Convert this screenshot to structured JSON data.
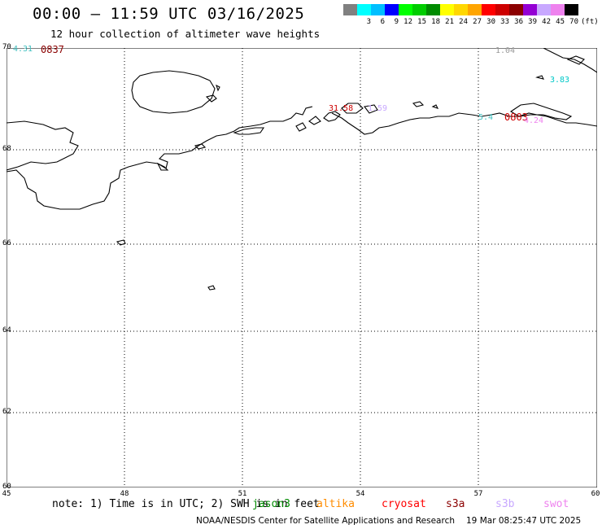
{
  "header": {
    "title": "00:00 — 11:59 UTC 03/16/2025",
    "subtitle": "12 hour collection of altimeter wave heights"
  },
  "legend": {
    "unit": "(ft)",
    "bins": [
      {
        "label": "",
        "color": "#808080"
      },
      {
        "label": "3",
        "color": "#00ffff"
      },
      {
        "label": "6",
        "color": "#00bfff"
      },
      {
        "label": "9",
        "color": "#0000ff"
      },
      {
        "label": "12",
        "color": "#00ff00"
      },
      {
        "label": "15",
        "color": "#00cd00"
      },
      {
        "label": "18",
        "color": "#008b00"
      },
      {
        "label": "21",
        "color": "#ffff00"
      },
      {
        "label": "24",
        "color": "#ffd700"
      },
      {
        "label": "27",
        "color": "#ffa500"
      },
      {
        "label": "30",
        "color": "#ff0000"
      },
      {
        "label": "33",
        "color": "#cd0000"
      },
      {
        "label": "36",
        "color": "#8b0000"
      },
      {
        "label": "39",
        "color": "#9400d3"
      },
      {
        "label": "42",
        "color": "#c8a8ff"
      },
      {
        "label": "45",
        "color": "#ee82ee"
      },
      {
        "label": "70",
        "color": "#000000"
      }
    ]
  },
  "map": {
    "lat_ticks": [
      "70",
      "68",
      "66",
      "64",
      "62",
      "60"
    ],
    "lon_ticks": [
      "45",
      "48",
      "51",
      "54",
      "57",
      "60"
    ],
    "wave_labels": [
      {
        "text": "4.31",
        "color": "#40c0c0"
      },
      {
        "text": "0837",
        "color": "#8b0000"
      },
      {
        "text": "1.04",
        "color": "#999999"
      },
      {
        "text": "3.83",
        "color": "#00c8c8"
      },
      {
        "text": "31.58",
        "color": "#cd0000"
      },
      {
        "text": "1.59",
        "color": "#c8a8ff"
      },
      {
        "text": "5.4",
        "color": "#40c0c0"
      },
      {
        "text": "0803",
        "color": "#cd0000"
      },
      {
        "text": "4.24",
        "color": "#ee82ee"
      }
    ]
  },
  "note": {
    "text": "note: 1) Time is in UTC; 2) SWH is in feet",
    "satellites": [
      {
        "name": "jason3",
        "color": "#008b00"
      },
      {
        "name": "altika",
        "color": "#ff8c00"
      },
      {
        "name": "cryosat",
        "color": "#ff0000"
      },
      {
        "name": "s3a",
        "color": "#8b0000"
      },
      {
        "name": "s3b",
        "color": "#c8a8ff"
      },
      {
        "name": "swot",
        "color": "#ee82ee"
      }
    ]
  },
  "footer": {
    "credit": "NOAA/NESDIS Center for Satellite Applications and Research",
    "timestamp": "19 Mar 08:25:47 UTC 2025"
  }
}
